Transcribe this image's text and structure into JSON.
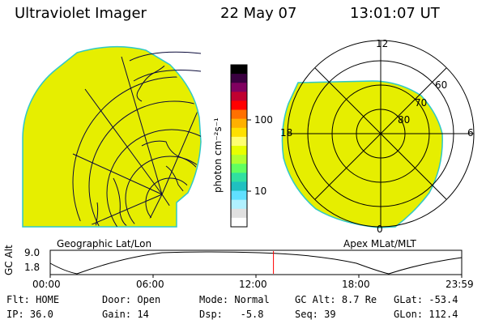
{
  "header": {
    "title": "Ultraviolet Imager",
    "date": "22 May 07",
    "time": "13:01:07 UT"
  },
  "colorbar": {
    "unit_label": "photon cm⁻²s⁻¹",
    "ticks": [
      "100",
      "10"
    ],
    "colors": [
      "#000000",
      "#3a0040",
      "#800060",
      "#c00030",
      "#ff0000",
      "#ff7000",
      "#ffb000",
      "#ffe000",
      "#ffff70",
      "#e8ff00",
      "#b0ff30",
      "#60ff60",
      "#30e0a0",
      "#20c0c0",
      "#60e0ff",
      "#b0f0ff",
      "#e0e0e0",
      "#ffffff"
    ]
  },
  "left_panel": {
    "caption": "Geographic Lat/Lon",
    "fill_color": "#e6ee00"
  },
  "right_panel": {
    "caption": "Apex MLat/MLT",
    "mlt_labels": {
      "top": "12",
      "right": "6",
      "bottom": "0",
      "left": "18"
    },
    "lat_labels": [
      "60",
      "70",
      "80"
    ],
    "fill_color": "#e6ee00"
  },
  "altitude_plot": {
    "ylabel": "GC Alt",
    "yticks": [
      "9.0",
      "1.8"
    ],
    "xticks": [
      "00:00",
      "06:00",
      "12:00",
      "18:00",
      "23:59"
    ],
    "current_time_hours": 13.02,
    "marker_color": "#ff0000"
  },
  "status": {
    "row1": [
      {
        "label": "Flt:",
        "value": "HOME"
      },
      {
        "label": "Door:",
        "value": "Open"
      },
      {
        "label": "Mode:",
        "value": "Normal"
      },
      {
        "label": "GC Alt:",
        "value": "8.7 Re"
      },
      {
        "label": "GLat:",
        "value": "-53.4"
      }
    ],
    "row2": [
      {
        "label": "IP:",
        "value": "36.0"
      },
      {
        "label": "Gain:",
        "value": "14"
      },
      {
        "label": "Dsp:",
        "value": "-5.8"
      },
      {
        "label": "Seq:",
        "value": "39"
      },
      {
        "label": "GLon:",
        "value": "112.4"
      }
    ]
  }
}
